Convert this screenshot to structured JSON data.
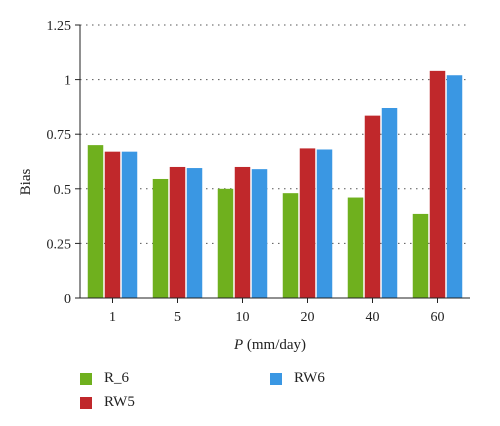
{
  "chart_data": {
    "type": "bar",
    "categories": [
      "1",
      "5",
      "10",
      "20",
      "40",
      "60"
    ],
    "series": [
      {
        "name": "R_6",
        "color": "#6fb01e",
        "values": [
          0.7,
          0.545,
          0.5,
          0.48,
          0.46,
          0.385
        ]
      },
      {
        "name": "RW5",
        "color": "#c0282b",
        "values": [
          0.67,
          0.6,
          0.6,
          0.685,
          0.835,
          1.04
        ]
      },
      {
        "name": "RW6",
        "color": "#3a97e3",
        "values": [
          0.67,
          0.595,
          0.59,
          0.68,
          0.87,
          1.02
        ]
      }
    ],
    "ylabel": "Bias",
    "xlabel_var": "P",
    "xlabel_unit": " (mm/day)",
    "ylim": [
      0,
      1.25
    ],
    "yticks": [
      "0",
      "0.25",
      "0.5",
      "0.75",
      "1",
      "1.25"
    ],
    "ytick_values": [
      0,
      0.25,
      0.5,
      0.75,
      1,
      1.25
    ],
    "grid": "dotted horizontal",
    "legend_placement": "bottom"
  }
}
